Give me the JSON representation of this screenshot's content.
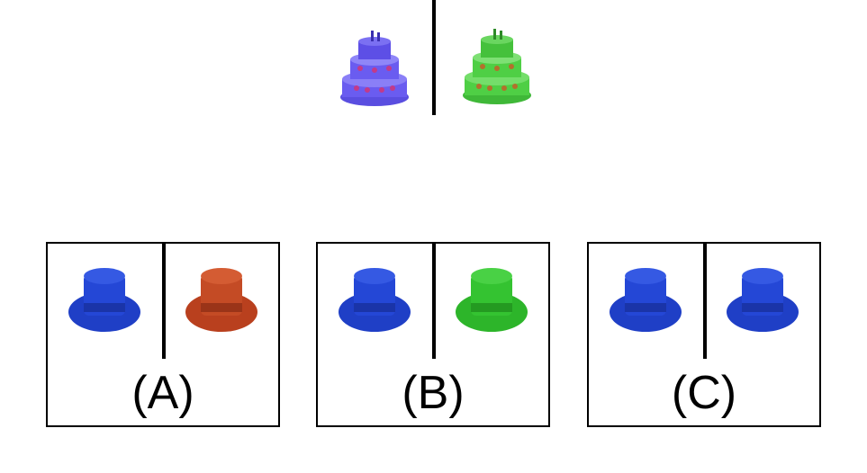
{
  "prompt": {
    "items": [
      {
        "object": "cake-icon",
        "color": "#6a5cf0"
      },
      {
        "object": "cake-icon",
        "color": "#4fcf45"
      }
    ]
  },
  "options": [
    {
      "label": "(A)",
      "left_hat_color": "#1f3fc6",
      "right_hat_color": "#b9401e"
    },
    {
      "label": "(B)",
      "left_hat_color": "#1f3fc6",
      "right_hat_color": "#2db52a"
    },
    {
      "label": "(C)",
      "left_hat_color": "#1f3fc6",
      "right_hat_color": "#1f3fc6"
    }
  ]
}
